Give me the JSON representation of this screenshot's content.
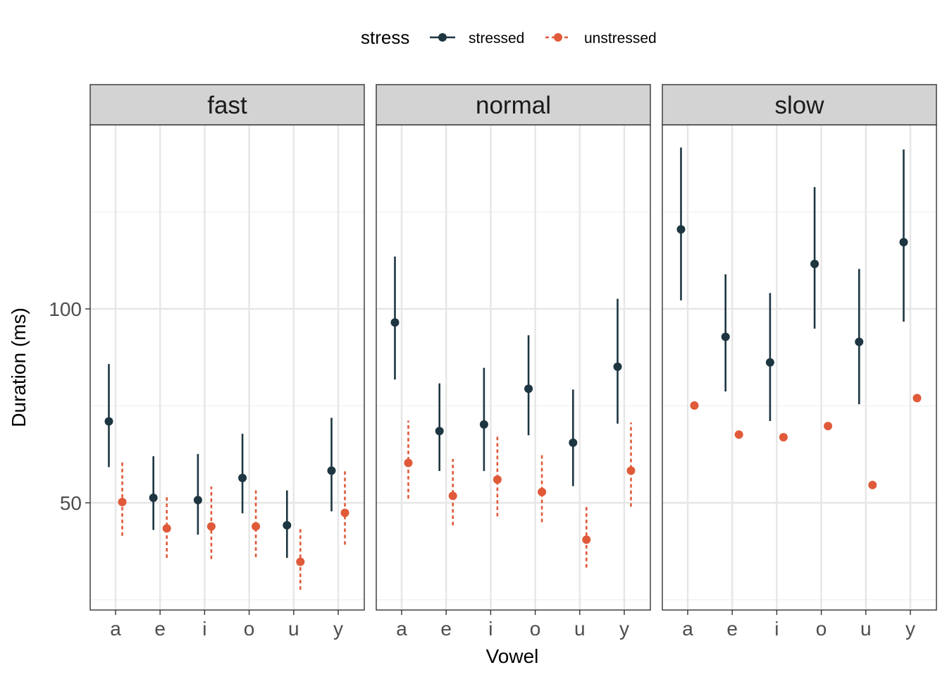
{
  "chart_data": {
    "type": "pointrange",
    "facet_labels": [
      "fast",
      "normal",
      "slow"
    ],
    "categories": [
      "a",
      "e",
      "i",
      "o",
      "u",
      "y"
    ],
    "xlabel": "Vowel",
    "ylabel": "Duration (ms)",
    "ylim": [
      25,
      150
    ],
    "y_ticks": [
      50,
      100
    ],
    "y_tick_labels": [
      "50",
      "100"
    ],
    "grid": true,
    "legend": {
      "title": "stress",
      "position": "top"
    },
    "series": [
      {
        "name": "stressed",
        "color": "#1d3641",
        "line": "solid",
        "facets": {
          "fast": {
            "mean": [
              71,
              51.3,
              50.7,
              56.4,
              44.2,
              58.3
            ],
            "lower": [
              59.2,
              43,
              41.8,
              47.3,
              35.8,
              47.8
            ],
            "upper": [
              85.8,
              62,
              62.6,
              67.8,
              53.2,
              71.9
            ]
          },
          "normal": {
            "mean": [
              96.5,
              68.5,
              70.2,
              79.4,
              65.5,
              85.1
            ],
            "lower": [
              81.8,
              58.2,
              58.2,
              67.4,
              54.3,
              70.4
            ],
            "upper": [
              113.5,
              80.8,
              84.8,
              93.2,
              79.2,
              102.6
            ]
          },
          "slow": {
            "mean": [
              120.5,
              92.8,
              86.2,
              111.6,
              91.5,
              117.2
            ],
            "lower": [
              102.2,
              78.7,
              71.1,
              94.9,
              75.4,
              96.7
            ],
            "upper": [
              141.6,
              108.9,
              104.1,
              131.4,
              110.3,
              141.1
            ]
          }
        }
      },
      {
        "name": "unstressed",
        "color": "#e05a3a",
        "line": "dotted",
        "facets": {
          "fast": {
            "mean": [
              50.2,
              43.4,
              43.9,
              43.9,
              34.8,
              47.4
            ],
            "lower": [
              41.5,
              35.8,
              35.5,
              36,
              27.6,
              39.2
            ],
            "upper": [
              61,
              52.2,
              54.2,
              53.2,
              43.5,
              58.5
            ]
          },
          "normal": {
            "mean": [
              60.3,
              51.8,
              56,
              52.8,
              40.5,
              58.3
            ],
            "lower": [
              51.1,
              44.2,
              46.5,
              45,
              33.3,
              49
            ],
            "upper": [
              71.2,
              61.3,
              67.8,
              62.6,
              49.3,
              70.7
            ]
          },
          "slow": {
            "mean": [
              75.1,
              67.6,
              66.9,
              69.8,
              54.6,
              77
            ]
          }
        }
      }
    ]
  }
}
